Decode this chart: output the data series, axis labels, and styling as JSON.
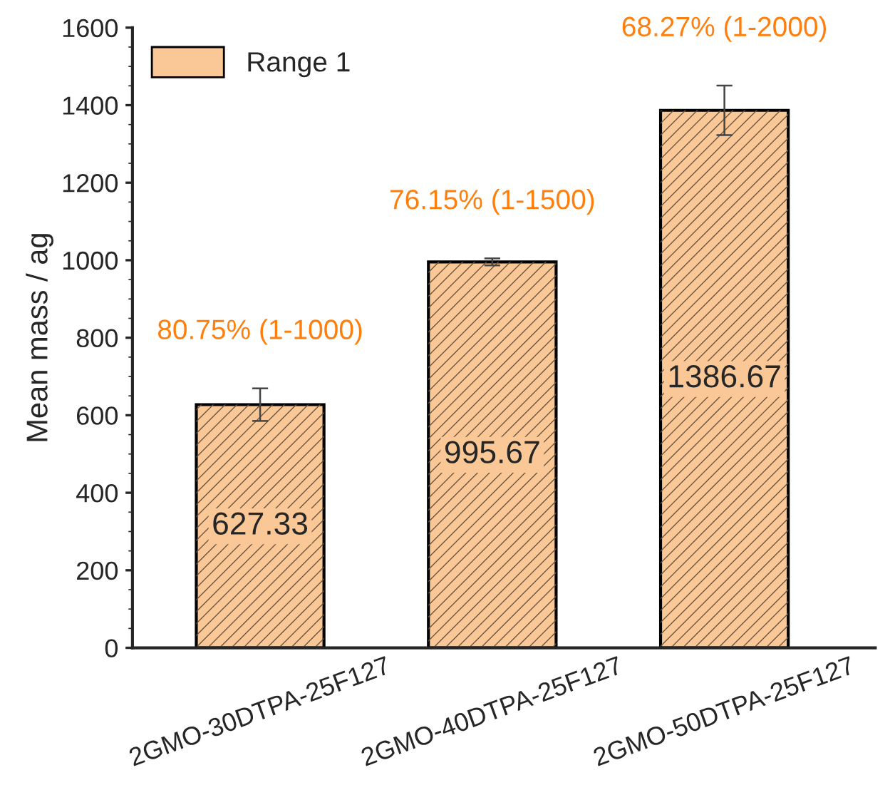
{
  "chart_data": {
    "type": "bar",
    "ylabel": "Mean mass / ag",
    "categories": [
      "2GMO-30DTPA-25F127",
      "2GMO-40DTPA-25F127",
      "2GMO-50DTPA-25F127"
    ],
    "series": [
      {
        "name": "Range 1",
        "color": "#fac896",
        "values": [
          627.33,
          995.67,
          1386.67
        ],
        "errors": [
          42,
          9,
          64
        ]
      }
    ],
    "data_labels": true,
    "annotations": [
      "80.75% (1-1000)",
      "76.15% (1-1500)",
      "68.27% (1-2000)"
    ],
    "ylim": [
      0,
      1600
    ],
    "yticks": [
      0,
      200,
      400,
      600,
      800,
      1000,
      1200,
      1400,
      1600
    ],
    "legend": "top left",
    "grid": false
  }
}
